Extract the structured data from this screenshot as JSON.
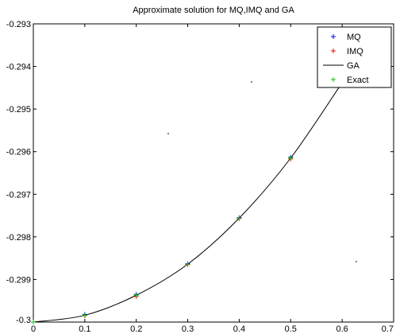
{
  "chart_data": {
    "type": "line",
    "title": "Approximate solution for MQ,IMQ and GA",
    "xlabel": "",
    "ylabel": "",
    "xlim": [
      0,
      0.7
    ],
    "ylim": [
      -0.3,
      -0.293
    ],
    "x_ticks": [
      0,
      0.1,
      0.2,
      0.3,
      0.4,
      0.5,
      0.6,
      0.7
    ],
    "x_tick_labels": [
      "0",
      "0.1",
      "0.2",
      "0.3",
      "0.4",
      "0.5",
      "0.6",
      "0.7"
    ],
    "y_ticks": [
      -0.3,
      -0.299,
      -0.298,
      -0.297,
      -0.296,
      -0.295,
      -0.294,
      -0.293
    ],
    "y_tick_labels": [
      "-0.3",
      "-0.299",
      "-0.298",
      "-0.297",
      "-0.296",
      "-0.295",
      "-0.294",
      "-0.293"
    ],
    "grid": false,
    "legend_position": "top-right",
    "series": [
      {
        "name": "MQ",
        "mark": "plus",
        "color": "#0000ff",
        "x": [
          0,
          0.1,
          0.2,
          0.3,
          0.4,
          0.5,
          0.6
        ],
        "y": [
          -0.3,
          -0.29982,
          -0.29935,
          -0.29863,
          -0.29755,
          -0.29613,
          -0.29436
        ]
      },
      {
        "name": "IMQ",
        "mark": "plus",
        "color": "#ff0000",
        "x": [
          0,
          0.1,
          0.2,
          0.3,
          0.4,
          0.5,
          0.6
        ],
        "y": [
          -0.3,
          -0.29985,
          -0.2994,
          -0.29865,
          -0.29757,
          -0.29617,
          -0.2944
        ]
      },
      {
        "name": "GA",
        "mark": "line",
        "color": "#000000",
        "x": [
          0,
          0.1,
          0.2,
          0.3,
          0.4,
          0.5,
          0.6
        ],
        "y": [
          -0.3,
          -0.29984,
          -0.29937,
          -0.29864,
          -0.29756,
          -0.29615,
          -0.29438
        ]
      },
      {
        "name": "Exact",
        "mark": "plus",
        "color": "#00cc00",
        "x": [
          0,
          0.1,
          0.2,
          0.3,
          0.4,
          0.5,
          0.6
        ],
        "y": [
          -0.3,
          -0.29984,
          -0.29937,
          -0.29864,
          -0.29756,
          -0.29615,
          -0.29438
        ]
      }
    ]
  }
}
